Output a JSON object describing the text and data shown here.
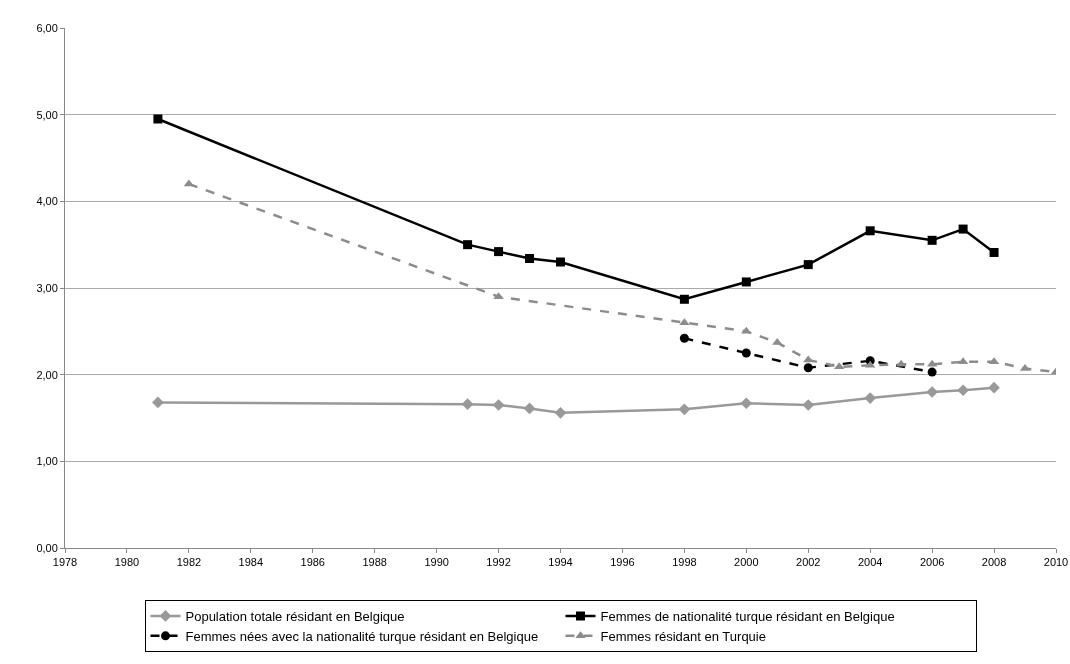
{
  "chart_data": {
    "type": "line",
    "xlim": [
      1978,
      2010
    ],
    "xticks": [
      1978,
      1980,
      1982,
      1984,
      1986,
      1988,
      1990,
      1992,
      1994,
      1996,
      1998,
      2000,
      2002,
      2004,
      2006,
      2008,
      2010
    ],
    "ylim": [
      0,
      6
    ],
    "yticks": [
      {
        "value": 0,
        "label": "0,00"
      },
      {
        "value": 1,
        "label": "1,00"
      },
      {
        "value": 2,
        "label": "2,00"
      },
      {
        "value": 3,
        "label": "3,00"
      },
      {
        "value": 4,
        "label": "4,00"
      },
      {
        "value": 5,
        "label": "5,00"
      },
      {
        "value": 6,
        "label": "6,00"
      }
    ],
    "grid": "y",
    "legend": "bottom",
    "series": [
      {
        "name": "Population totale résidant en Belgique",
        "color": "#999999",
        "marker": "diamond",
        "line_style": "solid",
        "x": [
          1981,
          1991,
          1992,
          1993,
          1994,
          1998,
          2000,
          2002,
          2004,
          2006,
          2007,
          2008
        ],
        "values": [
          1.68,
          1.66,
          1.65,
          1.61,
          1.56,
          1.6,
          1.67,
          1.65,
          1.73,
          1.8,
          1.82,
          1.85
        ]
      },
      {
        "name": "Femmes de nationalité turque résidant en Belgique",
        "color": "#000000",
        "marker": "square",
        "line_style": "solid",
        "x": [
          1981,
          1991,
          1992,
          1993,
          1994,
          1998,
          2000,
          2002,
          2004,
          2006,
          2007,
          2008
        ],
        "values": [
          4.95,
          3.5,
          3.42,
          3.34,
          3.3,
          2.87,
          3.07,
          3.27,
          3.66,
          3.55,
          3.68,
          3.41
        ]
      },
      {
        "name": "Femmes nées avec la nationalité turque résidant en Belgique",
        "color": "#000000",
        "marker": "circle",
        "line_style": "dashed",
        "x": [
          1998,
          2000,
          2002,
          2004,
          2006
        ],
        "values": [
          2.42,
          2.25,
          2.08,
          2.16,
          2.03
        ]
      },
      {
        "name": "Femmes résidant en Turquie",
        "color": "#8c8c8c",
        "marker": "triangle",
        "line_style": "dashed",
        "x": [
          1982,
          1992,
          1998,
          2000,
          2001,
          2002,
          2003,
          2004,
          2005,
          2006,
          2007,
          2008,
          2009,
          2010
        ],
        "values": [
          4.2,
          2.9,
          2.6,
          2.5,
          2.37,
          2.17,
          2.09,
          2.11,
          2.12,
          2.12,
          2.15,
          2.15,
          2.07,
          2.03
        ]
      }
    ]
  }
}
